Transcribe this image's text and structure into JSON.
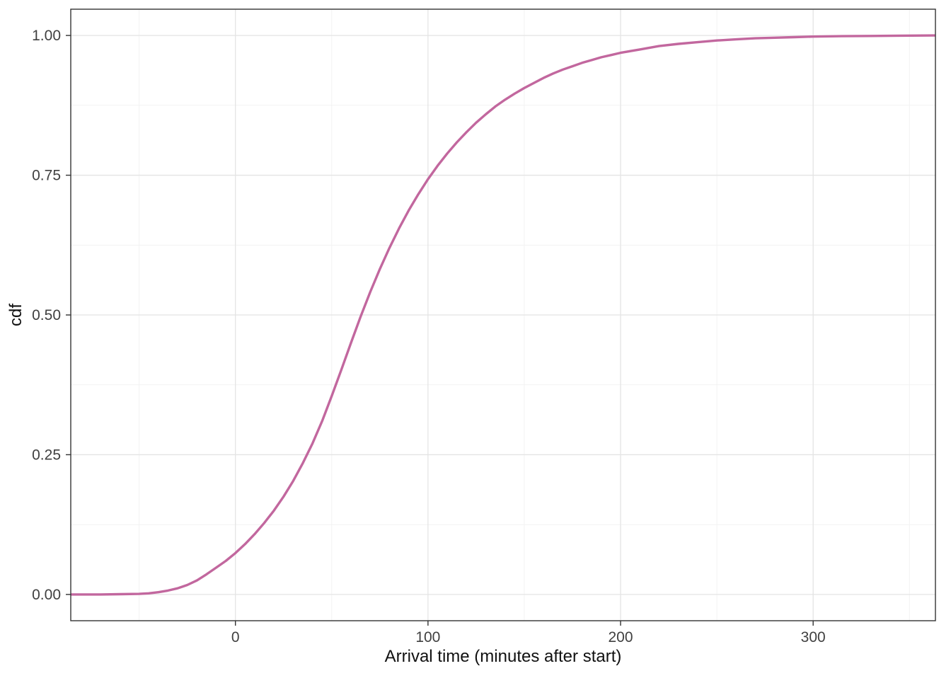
{
  "chart_data": {
    "type": "line",
    "title": "",
    "xlabel": "Arrival time (minutes after start)",
    "ylabel": "cdf",
    "xlim": [
      -85.5,
      363.5
    ],
    "ylim": [
      -0.047,
      1.047
    ],
    "x_ticks": [
      0,
      100,
      200,
      300
    ],
    "x_tick_labels": [
      "0",
      "100",
      "200",
      "300"
    ],
    "y_ticks": [
      0,
      0.25,
      0.5,
      0.75,
      1
    ],
    "y_tick_labels": [
      "0.00",
      "0.25",
      "0.50",
      "0.75",
      "1.00"
    ],
    "x_minor_ticks": [
      -50,
      50,
      150,
      250,
      350
    ],
    "y_minor_ticks": [
      0.125,
      0.375,
      0.625,
      0.875
    ],
    "grid": "major-and-minor",
    "legend": "none",
    "panel_background": "#ffffff",
    "panel_border_color": "#333333",
    "major_grid_color": "#e4e4e4",
    "minor_grid_color": "#f1f1f1",
    "line_color": "#c2679e",
    "series": [
      {
        "name": "cdf",
        "x": [
          -85,
          -70,
          -60,
          -50,
          -45,
          -40,
          -35,
          -30,
          -25,
          -20,
          -15,
          -10,
          -5,
          0,
          5,
          10,
          15,
          20,
          25,
          30,
          35,
          40,
          45,
          50,
          55,
          60,
          65,
          70,
          75,
          80,
          85,
          90,
          95,
          100,
          105,
          110,
          115,
          120,
          125,
          130,
          135,
          140,
          145,
          150,
          155,
          160,
          165,
          170,
          175,
          180,
          185,
          190,
          195,
          200,
          210,
          220,
          230,
          240,
          250,
          260,
          270,
          280,
          290,
          300,
          315,
          330,
          345,
          363
        ],
        "y": [
          0,
          0,
          0.0005,
          0.001,
          0.002,
          0.004,
          0.007,
          0.011,
          0.017,
          0.025,
          0.036,
          0.048,
          0.06,
          0.074,
          0.09,
          0.108,
          0.128,
          0.15,
          0.175,
          0.203,
          0.235,
          0.27,
          0.31,
          0.355,
          0.402,
          0.45,
          0.497,
          0.541,
          0.582,
          0.62,
          0.655,
          0.687,
          0.716,
          0.743,
          0.767,
          0.789,
          0.809,
          0.827,
          0.844,
          0.859,
          0.873,
          0.885,
          0.896,
          0.906,
          0.915,
          0.924,
          0.932,
          0.939,
          0.945,
          0.951,
          0.956,
          0.961,
          0.965,
          0.969,
          0.975,
          0.981,
          0.985,
          0.988,
          0.991,
          0.993,
          0.995,
          0.996,
          0.997,
          0.998,
          0.9987,
          0.9992,
          0.9996,
          1.0
        ]
      }
    ]
  }
}
